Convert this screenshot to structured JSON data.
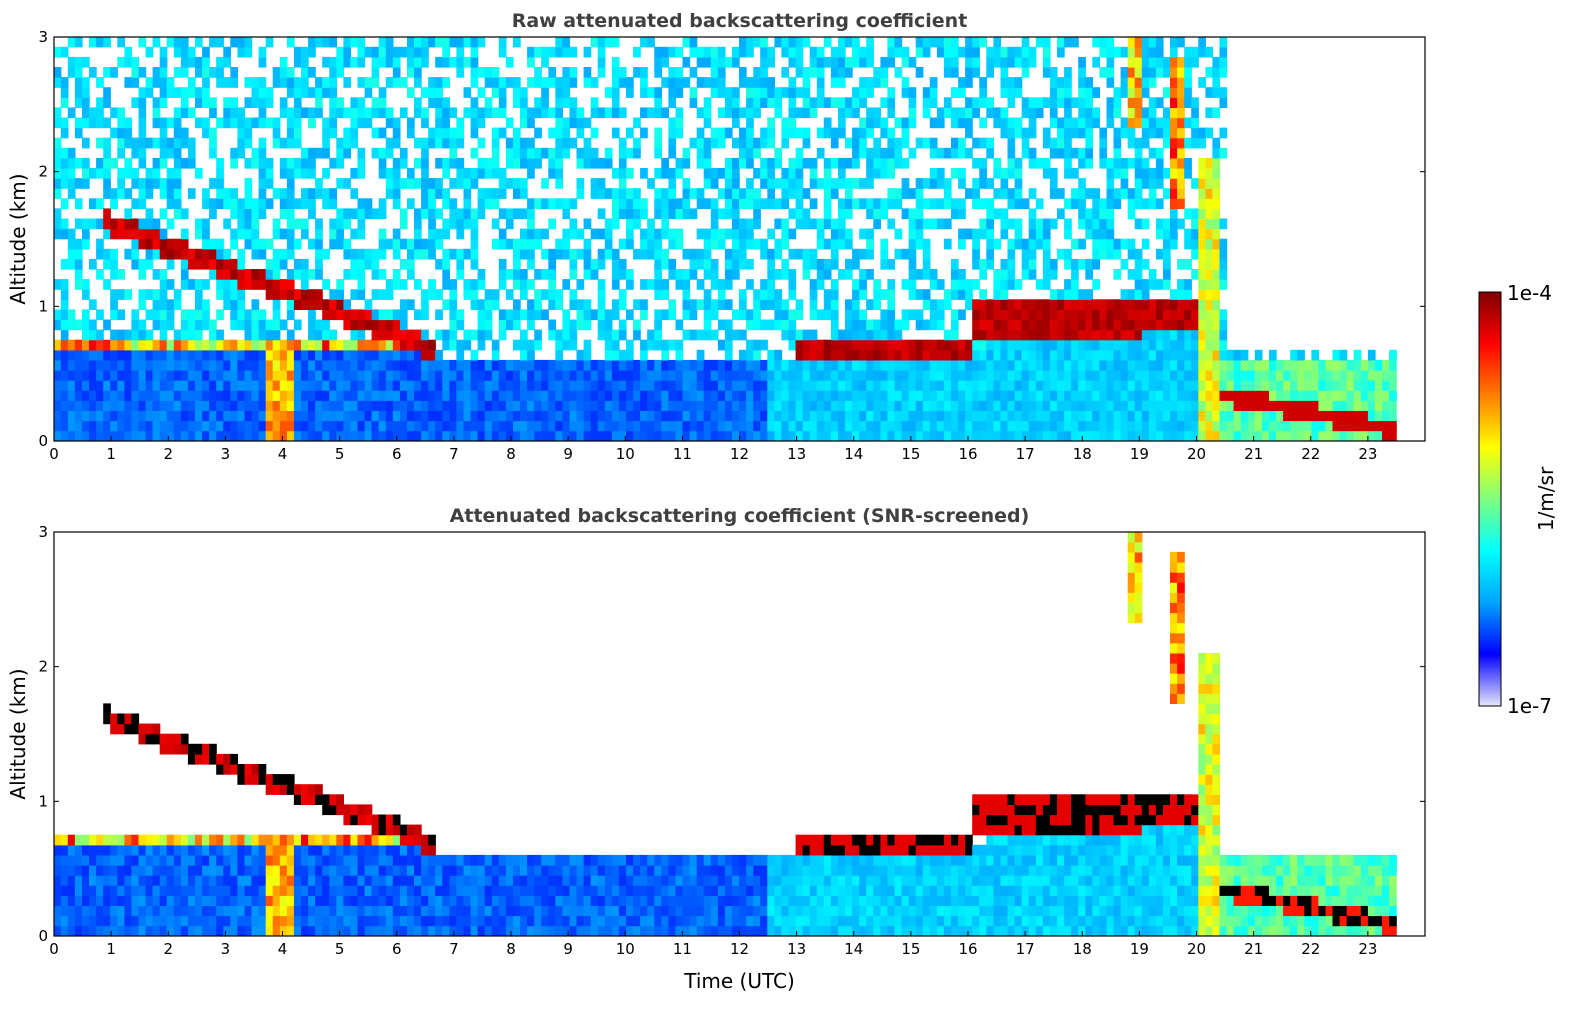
{
  "chart_data": [
    {
      "type": "heatmap",
      "title": "Raw attenuated backscattering coefficient",
      "xlabel": "",
      "ylabel": "Altitude (km)",
      "xlim": [
        0,
        24
      ],
      "ylim": [
        0,
        3
      ],
      "x_ticks": [
        "0",
        "1",
        "2",
        "3",
        "4",
        "5",
        "6",
        "7",
        "8",
        "9",
        "10",
        "11",
        "12",
        "13",
        "14",
        "15",
        "16",
        "17",
        "18",
        "19",
        "20",
        "21",
        "22",
        "23"
      ],
      "y_ticks": [
        "0",
        "1",
        "2",
        "3"
      ],
      "data_end_hour": 23.5,
      "features": [
        {
          "name": "dense aerosol layer",
          "x": [
            0,
            20.2
          ],
          "top_km": [
            0.75,
            0.55
          ]
        },
        {
          "name": "early cloud layer",
          "x": [
            0.9,
            6.7
          ],
          "base_km": [
            1.55,
            0.55
          ],
          "value": "high"
        },
        {
          "name": "stratocumulus deck",
          "x": [
            13.0,
            20.1
          ],
          "base_km": [
            0.6,
            0.8
          ],
          "top_km": [
            0.75,
            1.05
          ],
          "value": "high"
        },
        {
          "name": "precipitation streak",
          "x": [
            3.7,
            4.2
          ],
          "km": [
            0,
            0.75
          ]
        },
        {
          "name": "high cloud streaks",
          "x": [
            18.7,
            20.3
          ],
          "km": [
            1.7,
            3.0
          ]
        },
        {
          "name": "low cloud after 20.5 UTC",
          "x": [
            20.4,
            23.5
          ],
          "km": [
            0.35,
            0.1
          ],
          "value": "high"
        }
      ]
    },
    {
      "type": "heatmap",
      "title": "Attenuated backscattering coefficient (SNR-screened)",
      "xlabel": "Time (UTC)",
      "ylabel": "Altitude (km)",
      "xlim": [
        0,
        24
      ],
      "ylim": [
        0,
        3
      ],
      "x_ticks": [
        "0",
        "1",
        "2",
        "3",
        "4",
        "5",
        "6",
        "7",
        "8",
        "9",
        "10",
        "11",
        "12",
        "13",
        "14",
        "15",
        "16",
        "17",
        "18",
        "19",
        "20",
        "21",
        "22",
        "23"
      ],
      "y_ticks": [
        "0",
        "1",
        "2",
        "3"
      ],
      "data_end_hour": 23.5,
      "screened": true
    }
  ],
  "colorbar": {
    "label": "1/m/sr",
    "max_label": "1e-4",
    "min_label": "1e-7",
    "scale": "log",
    "colormap": [
      "#e6e6fa",
      "#0000ff",
      "#00a5ff",
      "#00ffff",
      "#7fff7f",
      "#ffff00",
      "#ff7f00",
      "#ff0000",
      "#7f0000"
    ]
  }
}
